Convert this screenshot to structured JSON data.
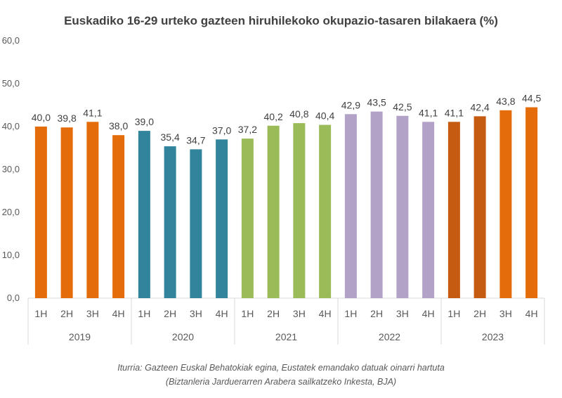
{
  "chart_data": {
    "type": "bar",
    "title": "Euskadiko  16-29 urteko gazteen hiruhilekoko  okupazio-tasaren bilakaera (%)",
    "ylim": [
      0,
      60
    ],
    "yticks": [
      "0,0",
      "10,0",
      "20,0",
      "30,0",
      "40,0",
      "50,0",
      "60,0"
    ],
    "grid": false,
    "legend": "none",
    "groups": [
      {
        "year": "2019",
        "quarters": [
          "1H",
          "2H",
          "3H",
          "4H"
        ],
        "values": [
          40.0,
          39.8,
          41.1,
          38.0
        ],
        "labels": [
          "40,0",
          "39,8",
          "41,1",
          "38,0"
        ],
        "colors": [
          "#E46C0A",
          "#E46C0A",
          "#E46C0A",
          "#E46C0A"
        ]
      },
      {
        "year": "2020",
        "quarters": [
          "1H",
          "2H",
          "3H",
          "4H"
        ],
        "values": [
          39.0,
          35.4,
          34.7,
          37.0
        ],
        "labels": [
          "39,0",
          "35,4",
          "34,7",
          "37,0"
        ],
        "colors": [
          "#31849B",
          "#31849B",
          "#31849B",
          "#31849B"
        ]
      },
      {
        "year": "2021",
        "quarters": [
          "1H",
          "2H",
          "3H",
          "4H"
        ],
        "values": [
          37.2,
          40.2,
          40.8,
          40.4
        ],
        "labels": [
          "37,2",
          "40,2",
          "40,8",
          "40,4"
        ],
        "colors": [
          "#9BBB59",
          "#9BBB59",
          "#9BBB59",
          "#9BBB59"
        ]
      },
      {
        "year": "2022",
        "quarters": [
          "1H",
          "2H",
          "3H",
          "4H"
        ],
        "values": [
          42.9,
          43.5,
          42.5,
          41.1
        ],
        "labels": [
          "42,9",
          "43,5",
          "42,5",
          "41,1"
        ],
        "colors": [
          "#B3A2C7",
          "#B3A2C7",
          "#B3A2C7",
          "#B3A2C7"
        ]
      },
      {
        "year": "2023",
        "quarters": [
          "1H",
          "2H",
          "3H",
          "4H"
        ],
        "values": [
          41.1,
          42.4,
          43.8,
          44.5
        ],
        "labels": [
          "41,1",
          "42,4",
          "43,8",
          "44,5"
        ],
        "colors": [
          "#C55A11",
          "#C55A11",
          "#E46C0A",
          "#E46C0A"
        ]
      }
    ]
  },
  "source": {
    "line1": "Iturria: Gazteen Euskal Behatokiak egina, Eustatek emandako datuak oinarri hartuta",
    "line2": "(Biztanleria Jarduerarren Arabera sailkatzeko Inkesta, BJA)"
  }
}
